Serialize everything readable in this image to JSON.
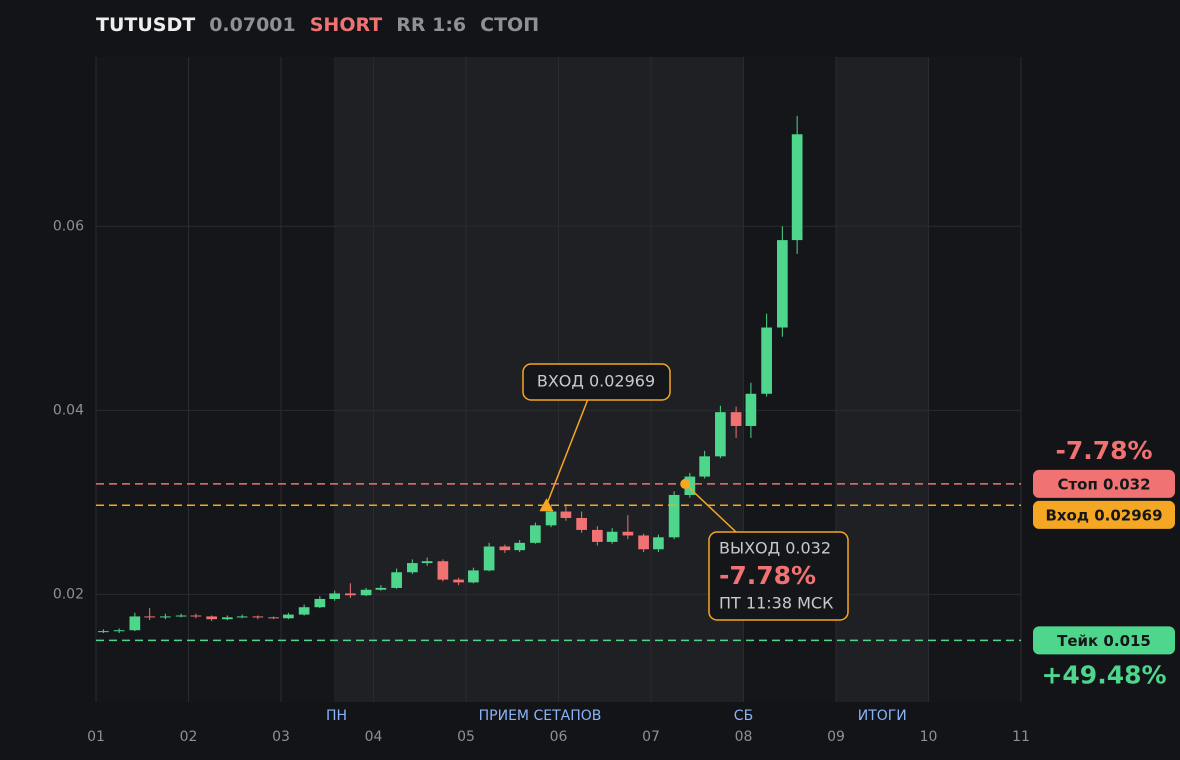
{
  "chart_data": {
    "type": "candlestick",
    "symbol": "TUTUSDT",
    "last_price": 0.07001,
    "side": "SHORT",
    "rr": "RR 1:6",
    "status": "СТОП",
    "x": [
      1.08,
      1.25,
      1.42,
      1.58,
      1.75,
      1.92,
      2.08,
      2.25,
      2.42,
      2.58,
      2.75,
      2.92,
      3.08,
      3.25,
      3.42,
      3.58,
      3.75,
      3.92,
      4.08,
      4.25,
      4.42,
      4.58,
      4.75,
      4.92,
      5.08,
      5.25,
      5.42,
      5.58,
      5.75,
      5.92,
      6.08,
      6.25,
      6.42,
      6.58,
      6.75,
      6.92,
      7.08,
      7.25,
      7.42,
      7.58,
      7.75,
      7.92,
      8.08,
      8.25,
      8.42,
      8.58
    ],
    "open": [
      0.0159,
      0.016,
      0.0161,
      0.0176,
      0.0175,
      0.0176,
      0.0177,
      0.0176,
      0.0173,
      0.0175,
      0.0176,
      0.0175,
      0.0174,
      0.0178,
      0.0186,
      0.0195,
      0.0201,
      0.0199,
      0.0205,
      0.0207,
      0.0224,
      0.0234,
      0.0236,
      0.0216,
      0.0213,
      0.0226,
      0.0252,
      0.0248,
      0.0256,
      0.0275,
      0.029,
      0.0283,
      0.027,
      0.0257,
      0.0268,
      0.0264,
      0.0249,
      0.0262,
      0.0308,
      0.0328,
      0.035,
      0.0398,
      0.0383,
      0.0418,
      0.049,
      0.0585
    ],
    "high": [
      0.0162,
      0.0163,
      0.018,
      0.0185,
      0.0179,
      0.0179,
      0.0179,
      0.0177,
      0.0177,
      0.0178,
      0.0177,
      0.0176,
      0.018,
      0.0189,
      0.0198,
      0.0204,
      0.0212,
      0.0207,
      0.021,
      0.0228,
      0.0238,
      0.024,
      0.0238,
      0.0218,
      0.0229,
      0.0256,
      0.0254,
      0.0259,
      0.0278,
      0.0296,
      0.0298,
      0.029,
      0.0274,
      0.0272,
      0.0286,
      0.0266,
      0.0265,
      0.0312,
      0.0332,
      0.0356,
      0.0405,
      0.0404,
      0.043,
      0.0505,
      0.06,
      0.072
    ],
    "low": [
      0.0158,
      0.0158,
      0.016,
      0.0172,
      0.0173,
      0.0175,
      0.0174,
      0.0171,
      0.0172,
      0.0174,
      0.0173,
      0.0173,
      0.0173,
      0.0177,
      0.0185,
      0.0193,
      0.0196,
      0.0198,
      0.0204,
      0.0206,
      0.0222,
      0.0231,
      0.0214,
      0.021,
      0.0212,
      0.0225,
      0.0245,
      0.0246,
      0.0255,
      0.0273,
      0.028,
      0.0267,
      0.0253,
      0.0255,
      0.026,
      0.0246,
      0.0246,
      0.026,
      0.0305,
      0.0326,
      0.0348,
      0.037,
      0.037,
      0.0415,
      0.048,
      0.057
    ],
    "close": [
      0.016,
      0.0161,
      0.0176,
      0.0175,
      0.0176,
      0.0177,
      0.0176,
      0.0173,
      0.0175,
      0.0176,
      0.0175,
      0.0174,
      0.0178,
      0.0186,
      0.0195,
      0.0201,
      0.0199,
      0.0205,
      0.0207,
      0.0224,
      0.0234,
      0.0236,
      0.0216,
      0.0213,
      0.0226,
      0.0252,
      0.0248,
      0.0256,
      0.0275,
      0.029,
      0.0283,
      0.027,
      0.0257,
      0.0268,
      0.0264,
      0.0249,
      0.0262,
      0.0308,
      0.0328,
      0.035,
      0.0398,
      0.0383,
      0.0418,
      0.049,
      0.0585,
      0.07
    ],
    "up_color": "#4fd68d",
    "down_color": "#f07272",
    "xlim": [
      1,
      11
    ],
    "xticks": [
      {
        "value": 1,
        "label": "01"
      },
      {
        "value": 2,
        "label": "02"
      },
      {
        "value": 3,
        "label": "03"
      },
      {
        "value": 4,
        "label": "04"
      },
      {
        "value": 5,
        "label": "05"
      },
      {
        "value": 6,
        "label": "06"
      },
      {
        "value": 7,
        "label": "07"
      },
      {
        "value": 8,
        "label": "08"
      },
      {
        "value": 9,
        "label": "09"
      },
      {
        "value": 10,
        "label": "10"
      },
      {
        "value": 11,
        "label": "11"
      }
    ],
    "ylim": [
      0.0083,
      0.0784
    ],
    "yticks": [
      0.02,
      0.04,
      0.06
    ],
    "grid": true,
    "regions": [
      {
        "start": 3.57,
        "end": 8
      },
      {
        "start": 9,
        "end": 10
      }
    ],
    "session_labels": [
      {
        "x": 3.6,
        "label": "ПН"
      },
      {
        "x": 5.8,
        "label": "ПРИЕМ СЕТАПОВ"
      },
      {
        "x": 8,
        "label": "СБ"
      },
      {
        "x": 9.5,
        "label": "ИТОГИ"
      }
    ],
    "levels": [
      {
        "label": "Стоп 0.032",
        "value": 0.032,
        "color": "#f07272",
        "pnl": "-7.78%"
      },
      {
        "label": "Вход 0.02969",
        "value": 0.02969,
        "color": "#f5a623"
      },
      {
        "label": "Тейк 0.015",
        "value": 0.015,
        "color": "#4fd68d",
        "pnl": "+49.48%"
      }
    ],
    "entry": {
      "x": 5.87,
      "price": 0.02969,
      "label": "ВХОД 0.02969"
    },
    "exit": {
      "x": 7.37,
      "price": 0.032,
      "label": "ВЫХОД 0.032",
      "pnl": "-7.78%",
      "time": "ПТ 11:38 МСК"
    }
  }
}
